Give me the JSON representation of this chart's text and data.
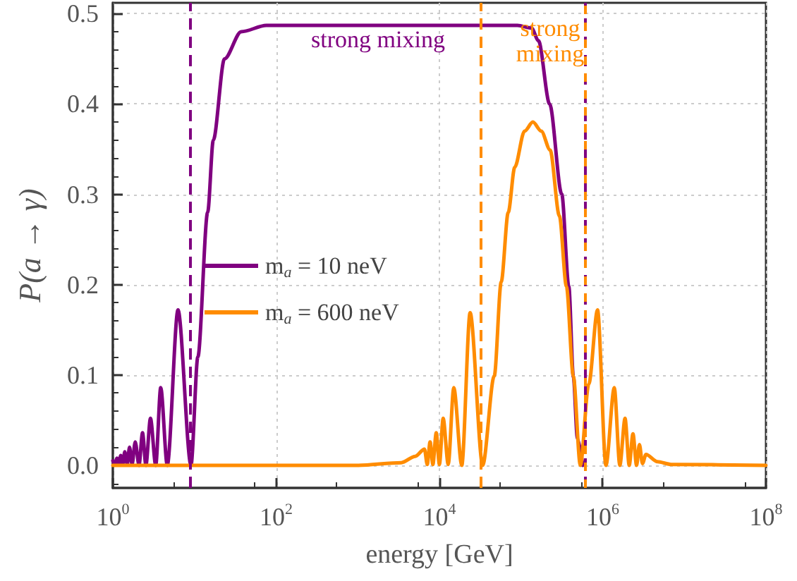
{
  "chart_data": {
    "type": "line",
    "xlabel": "energy [GeV]",
    "ylabel": "P(a → γ)",
    "log": "x",
    "grid": true,
    "legend": "center left",
    "marker": "none",
    "line_style": "solid",
    "xlim": [
      1,
      100000000
    ],
    "xticks": [
      {
        "value": 1,
        "label": "10$^{0}$"
      },
      {
        "value": 100,
        "label": "10$^{2}$"
      },
      {
        "value": 10000,
        "label": "10$^{4}$"
      },
      {
        "value": 1000000,
        "label": "10$^{6}$"
      },
      {
        "value": 100000000,
        "label": "10$^{8}$"
      }
    ],
    "ylim": [
      -0.025,
      0.512
    ],
    "yticks": [
      {
        "value": 0,
        "label": "0.0"
      },
      {
        "value": 0.1,
        "label": "0.1"
      },
      {
        "value": 0.2,
        "label": "0.2"
      },
      {
        "value": 0.3,
        "label": "0.3"
      },
      {
        "value": 0.4,
        "label": "0.4"
      },
      {
        "value": 0.5,
        "label": "0.5"
      }
    ],
    "series": [
      {
        "name": "m$_{a}$ = 10 neV",
        "color": "#800080",
        "x": [
          1,
          1.06,
          1.12,
          1.18,
          1.25,
          1.32,
          1.4,
          1.5,
          1.6,
          1.72,
          1.88,
          2.09,
          2.31,
          2.54,
          2.89,
          3.35,
          3.86,
          4.64,
          6.28,
          9.06,
          11,
          14.5,
          17,
          23.3,
          37.4,
          76,
          90600,
          134300,
          163600,
          223900,
          315500,
          384600,
          437500,
          490000,
          570000
        ],
        "values": [
          0.005,
          0.001,
          0.008,
          0.001,
          0.011,
          0.001,
          0.015,
          0.001,
          0.02,
          0.001,
          0.026,
          0,
          0.036,
          0,
          0.052,
          0,
          0.086,
          0,
          0.172,
          0,
          0.12,
          0.28,
          0.36,
          0.45,
          0.48,
          0.487,
          0.487,
          0.484,
          0.47,
          0.4,
          0.3,
          0.198,
          0.098,
          0.03,
          0
        ]
      },
      {
        "name": "m$_{a}$ = 600 neV",
        "color": "#ff8c00",
        "x": [
          1,
          1000,
          3412,
          5058,
          6561,
          7096,
          7691,
          8318,
          9141,
          10000,
          11120,
          12820,
          15000,
          18790,
          23770,
          33880,
          46990,
          57150,
          69660,
          83750,
          110400,
          139600,
          177000,
          227000,
          295100,
          359700,
          436500,
          532100,
          676000,
          865000,
          1096000,
          1387000,
          1622000,
          1879000,
          2113000,
          2350000,
          2600000,
          2818000,
          3070000,
          3388000,
          4677000,
          6918000,
          100000000
        ],
        "values": [
          0,
          0,
          0.003,
          0.01,
          0.018,
          0.001,
          0.026,
          0.001,
          0.036,
          0.001,
          0.052,
          0.001,
          0.086,
          0,
          0.169,
          0,
          0.099,
          0.203,
          0.28,
          0.33,
          0.37,
          0.38,
          0.37,
          0.349,
          0.276,
          0.198,
          0.099,
          0,
          0.09,
          0.172,
          0,
          0.086,
          0,
          0.052,
          0,
          0.035,
          0,
          0.023,
          0.002,
          0.012,
          0.004,
          0.001,
          0
        ]
      }
    ],
    "ref_lines": [
      {
        "axis": "x",
        "value": 9,
        "color": "#800080",
        "line_style": "dashed"
      },
      {
        "axis": "x",
        "value": 600000,
        "color": "#800080",
        "line_style": "dashed"
      },
      {
        "axis": "x",
        "value": 32600,
        "color": "#ff8c00",
        "line_style": "dashed"
      },
      {
        "axis": "x",
        "value": 600000,
        "color": "#ff8c00",
        "line_style": "dotted"
      }
    ],
    "annotations": [
      "strong mixing",
      "strong\nmixing"
    ]
  }
}
